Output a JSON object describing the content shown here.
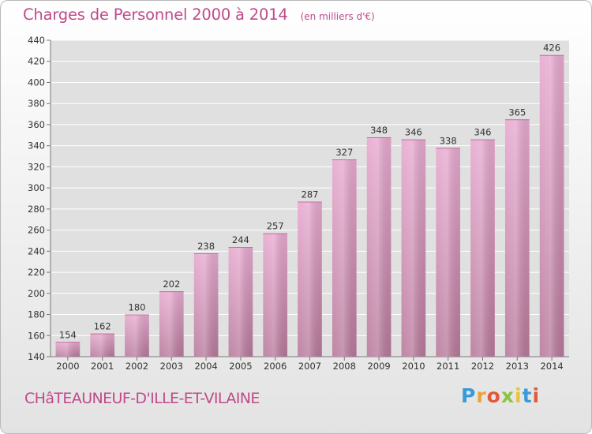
{
  "header": {
    "title": "Charges de Personnel 2000 à 2014",
    "subtitle": "(en milliers d'€)"
  },
  "footer": {
    "place": "CHâTEAUNEUF-D'ILLE-ET-VILAINE",
    "brand": "Proxiti"
  },
  "colors": {
    "bar_top": "#e7a9cf",
    "bar_bottom": "#b7799a",
    "accent": "#c04a8a",
    "plot_bg": "#e0e0e0",
    "grid": "#ffffff"
  },
  "chart_data": {
    "type": "bar",
    "title": "Charges de Personnel 2000 à 2014",
    "subtitle": "(en milliers d'€)",
    "xlabel": "",
    "ylabel": "",
    "categories": [
      "2000",
      "2001",
      "2002",
      "2003",
      "2004",
      "2005",
      "2006",
      "2007",
      "2008",
      "2009",
      "2010",
      "2011",
      "2012",
      "2013",
      "2014"
    ],
    "values": [
      154,
      162,
      180,
      202,
      238,
      244,
      257,
      287,
      327,
      348,
      346,
      338,
      346,
      365,
      426
    ],
    "ylim": [
      140,
      440
    ],
    "yticks": [
      140,
      160,
      180,
      200,
      220,
      240,
      260,
      280,
      300,
      320,
      340,
      360,
      380,
      400,
      420,
      440
    ],
    "grid": true,
    "data_labels": true
  }
}
